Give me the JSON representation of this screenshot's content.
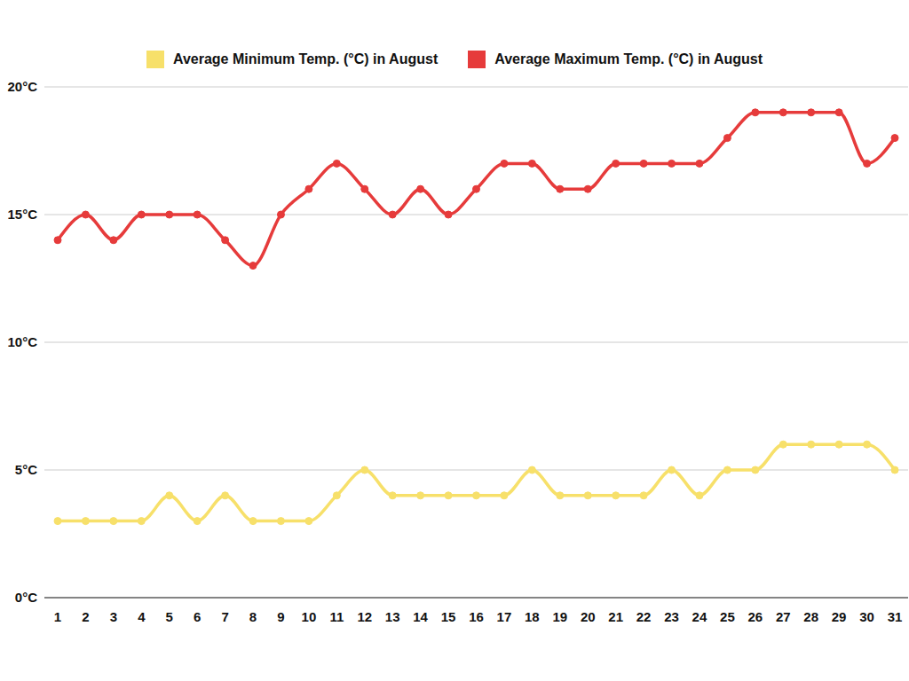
{
  "chart_data": {
    "type": "line",
    "categories": [
      "1",
      "2",
      "3",
      "4",
      "5",
      "6",
      "7",
      "8",
      "9",
      "10",
      "11",
      "12",
      "13",
      "14",
      "15",
      "16",
      "17",
      "18",
      "19",
      "20",
      "21",
      "22",
      "23",
      "24",
      "25",
      "26",
      "27",
      "28",
      "29",
      "30",
      "31"
    ],
    "series": [
      {
        "name": "Average Minimum Temp. (°C) in August",
        "color": "#f7e06a",
        "values": [
          3,
          3,
          3,
          3,
          4,
          3,
          4,
          3,
          3,
          3,
          4,
          5,
          4,
          4,
          4,
          4,
          4,
          5,
          4,
          4,
          4,
          4,
          5,
          4,
          5,
          5,
          6,
          6,
          6,
          6,
          5
        ]
      },
      {
        "name": "Average Maximum Temp. (°C) in August",
        "color": "#e63b3b",
        "values": [
          14,
          15,
          14,
          15,
          15,
          15,
          14,
          13,
          15,
          16,
          17,
          16,
          15,
          16,
          15,
          16,
          17,
          17,
          16,
          16,
          17,
          17,
          17,
          17,
          18,
          19,
          19,
          19,
          19,
          17,
          18
        ]
      }
    ],
    "ylim": [
      0,
      20
    ],
    "yticks": [
      {
        "value": 0,
        "label": "0°C"
      },
      {
        "value": 5,
        "label": "5°C"
      },
      {
        "value": 10,
        "label": "10°C"
      },
      {
        "value": 15,
        "label": "15°C"
      },
      {
        "value": 20,
        "label": "20°C"
      }
    ],
    "grid": true,
    "legend": "top",
    "marker": "circle",
    "line_style": "solid"
  }
}
